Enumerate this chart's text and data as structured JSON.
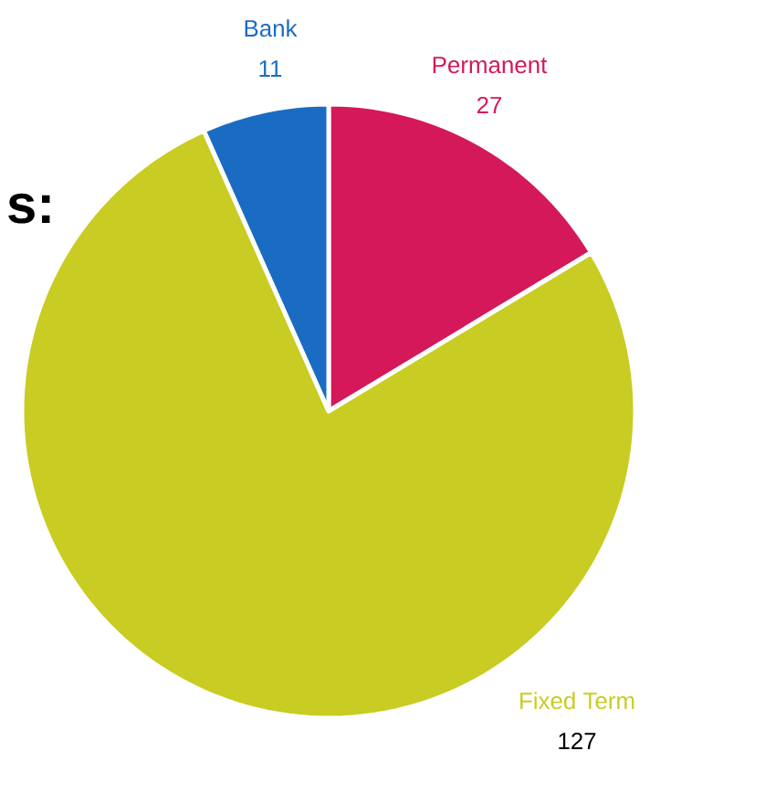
{
  "chart_data": {
    "type": "pie",
    "title": "s:",
    "categories": [
      "Permanent",
      "Fixed Term",
      "Bank"
    ],
    "values": [
      27,
      127,
      11
    ],
    "colors": [
      "#d5185a",
      "#c9cc22",
      "#1a6cc2"
    ],
    "data_labels": true
  }
}
